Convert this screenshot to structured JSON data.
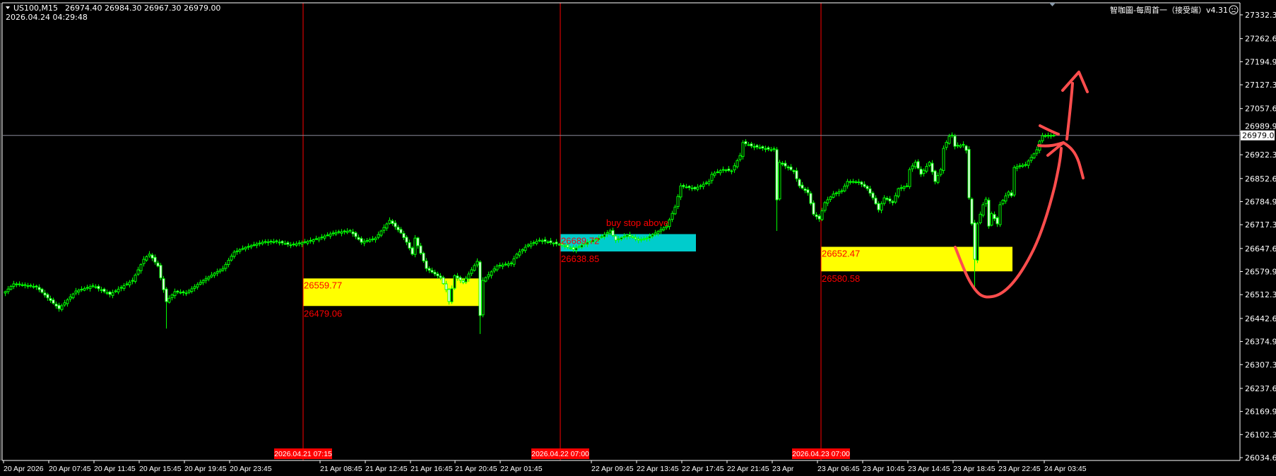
{
  "header": {
    "menu_icon": "triangle-down-icon",
    "symbol": "US100,M15",
    "ohlc": "26974.40 26984.30 26967.30 26979.00",
    "datetime": "2026.04.24 04:29:48"
  },
  "indicator_label": "智咖圖-每周首一（接受端）v4.31",
  "indicator_icon": "sad-face-icon",
  "current_price_label": "26979.00",
  "colors": {
    "background": "#000000",
    "candle": "#00ff00",
    "zone_yellow": "#ffff00",
    "zone_cyan": "#00cccc",
    "session_line": "#ff0000",
    "annotation": "#ff4d4d",
    "price_line": "#8a8a9a"
  },
  "chart_data": {
    "type": "candlestick",
    "symbol": "US100",
    "timeframe": "M15",
    "ylim": [
      26034.65,
      27332.3
    ],
    "y_ticks": [
      "27332.30",
      "27262.60",
      "27194.95",
      "27127.30",
      "27057.60",
      "26989.95",
      "26922.30",
      "26852.60",
      "26784.95",
      "26717.30",
      "26647.60",
      "26579.95",
      "26512.30",
      "26442.60",
      "26374.95",
      "26307.30",
      "26237.60",
      "26169.95",
      "26102.30",
      "26034.65"
    ],
    "x_ticks": [
      "20 Apr 2026",
      "20 Apr 07:45",
      "20 Apr 11:45",
      "20 Apr 15:45",
      "20 Apr 19:45",
      "20 Apr 23:45",
      "21 Apr 08:45",
      "21 Apr 12:45",
      "21 Apr 16:45",
      "21 Apr 20:45",
      "22 Apr 01:45",
      "22 Apr 09:45",
      "22 Apr 13:45",
      "22 Apr 17:45",
      "22 Apr 21:45",
      "23 Apr",
      "23 Apr 06:45",
      "23 Apr 10:45",
      "23 Apr 14:45",
      "23 Apr 18:45",
      "23 Apr 22:45",
      "24 Apr 03:45"
    ],
    "close_path": [
      [
        0,
        26521
      ],
      [
        3,
        26544
      ],
      [
        11,
        26535
      ],
      [
        19,
        26471
      ],
      [
        25,
        26523
      ],
      [
        31,
        26538
      ],
      [
        37,
        26513
      ],
      [
        45,
        26554
      ],
      [
        49,
        26616
      ],
      [
        51,
        26631
      ],
      [
        54,
        26596
      ],
      [
        57,
        26492
      ],
      [
        60,
        26521
      ],
      [
        64,
        26517
      ],
      [
        69,
        26548
      ],
      [
        74,
        26575
      ],
      [
        77,
        26589
      ],
      [
        81,
        26637
      ],
      [
        85,
        26651
      ],
      [
        91,
        26666
      ],
      [
        96,
        26668
      ],
      [
        101,
        26658
      ],
      [
        106,
        26666
      ],
      [
        111,
        26678
      ],
      [
        116,
        26693
      ],
      [
        122,
        26699
      ],
      [
        126,
        26666
      ],
      [
        131,
        26678
      ],
      [
        136,
        26730
      ],
      [
        140,
        26693
      ],
      [
        142,
        26666
      ],
      [
        144,
        26631
      ],
      [
        145,
        26678
      ],
      [
        149,
        26589
      ],
      [
        154,
        26562
      ],
      [
        156,
        26527
      ],
      [
        157,
        26492
      ],
      [
        159,
        26568
      ],
      [
        162,
        26548
      ],
      [
        167,
        26610
      ],
      [
        168,
        26451
      ],
      [
        169,
        26554
      ],
      [
        174,
        26596
      ],
      [
        179,
        26604
      ],
      [
        181,
        26631
      ],
      [
        185,
        26658
      ],
      [
        189,
        26672
      ],
      [
        197,
        26658
      ],
      [
        201,
        26645
      ],
      [
        206,
        26666
      ],
      [
        210,
        26678
      ],
      [
        214,
        26699
      ],
      [
        216,
        26672
      ],
      [
        220,
        26687
      ],
      [
        224,
        26672
      ],
      [
        227,
        26678
      ],
      [
        234,
        26713
      ],
      [
        237,
        26769
      ],
      [
        239,
        26831
      ],
      [
        244,
        26823
      ],
      [
        249,
        26844
      ],
      [
        250,
        26865
      ],
      [
        254,
        26879
      ],
      [
        257,
        26875
      ],
      [
        260,
        26920
      ],
      [
        261,
        26958
      ],
      [
        264,
        26948
      ],
      [
        271,
        26937
      ],
      [
        272,
        26940
      ],
      [
        273,
        26790
      ],
      [
        274,
        26900
      ],
      [
        279,
        26873
      ],
      [
        281,
        26831
      ],
      [
        284,
        26811
      ],
      [
        286,
        26748
      ],
      [
        288,
        26734
      ],
      [
        290,
        26782
      ],
      [
        293,
        26807
      ],
      [
        296,
        26817
      ],
      [
        298,
        26844
      ],
      [
        302,
        26842
      ],
      [
        305,
        26823
      ],
      [
        307,
        26796
      ],
      [
        309,
        26761
      ],
      [
        311,
        26796
      ],
      [
        314,
        26782
      ],
      [
        316,
        26823
      ],
      [
        319,
        26831
      ],
      [
        320,
        26879
      ],
      [
        322,
        26900
      ],
      [
        324,
        26865
      ],
      [
        327,
        26900
      ],
      [
        329,
        26844
      ],
      [
        331,
        26879
      ],
      [
        332,
        26941
      ],
      [
        334,
        26976
      ],
      [
        335,
        26980
      ],
      [
        336,
        26947
      ],
      [
        339,
        26951
      ],
      [
        340,
        26935
      ],
      [
        341,
        26796
      ],
      [
        342,
        26720
      ],
      [
        343,
        26616
      ],
      [
        344,
        26720
      ],
      [
        346,
        26776
      ],
      [
        347,
        26792
      ],
      [
        348,
        26713
      ],
      [
        349,
        26750
      ],
      [
        351,
        26720
      ],
      [
        352,
        26776
      ],
      [
        354,
        26802
      ],
      [
        355,
        26813
      ],
      [
        356,
        26802
      ],
      [
        357,
        26885
      ],
      [
        359,
        26890
      ],
      [
        361,
        26893
      ],
      [
        362,
        26904
      ],
      [
        364,
        26925
      ],
      [
        365,
        26937
      ],
      [
        366,
        26962
      ],
      [
        367,
        26978
      ],
      [
        371,
        26979
      ]
    ],
    "wick_lows": [
      [
        57,
        26413
      ],
      [
        168,
        26397
      ],
      [
        273,
        26699
      ],
      [
        343,
        26533
      ]
    ],
    "current_price": 26979.0,
    "session_markers": [
      "2026.04.21 07:15",
      "2026.04.22 07:00",
      "2026.04.23 07:00"
    ],
    "zones": [
      {
        "top": 26559.77,
        "bottom": 26479.06,
        "top_label": "26559.77",
        "bottom_label": "26479.06",
        "color": "#ffff00"
      },
      {
        "top": 26689.72,
        "bottom": 26638.85,
        "top_label": "26689.72",
        "bottom_label": "26638.85",
        "color": "#00cccc"
      },
      {
        "top": 26652.47,
        "bottom": 26580.58,
        "top_label": "26652.47",
        "bottom_label": "26580.58",
        "color": "#ffff00"
      }
    ],
    "annotations": [
      "buy stop above"
    ]
  }
}
